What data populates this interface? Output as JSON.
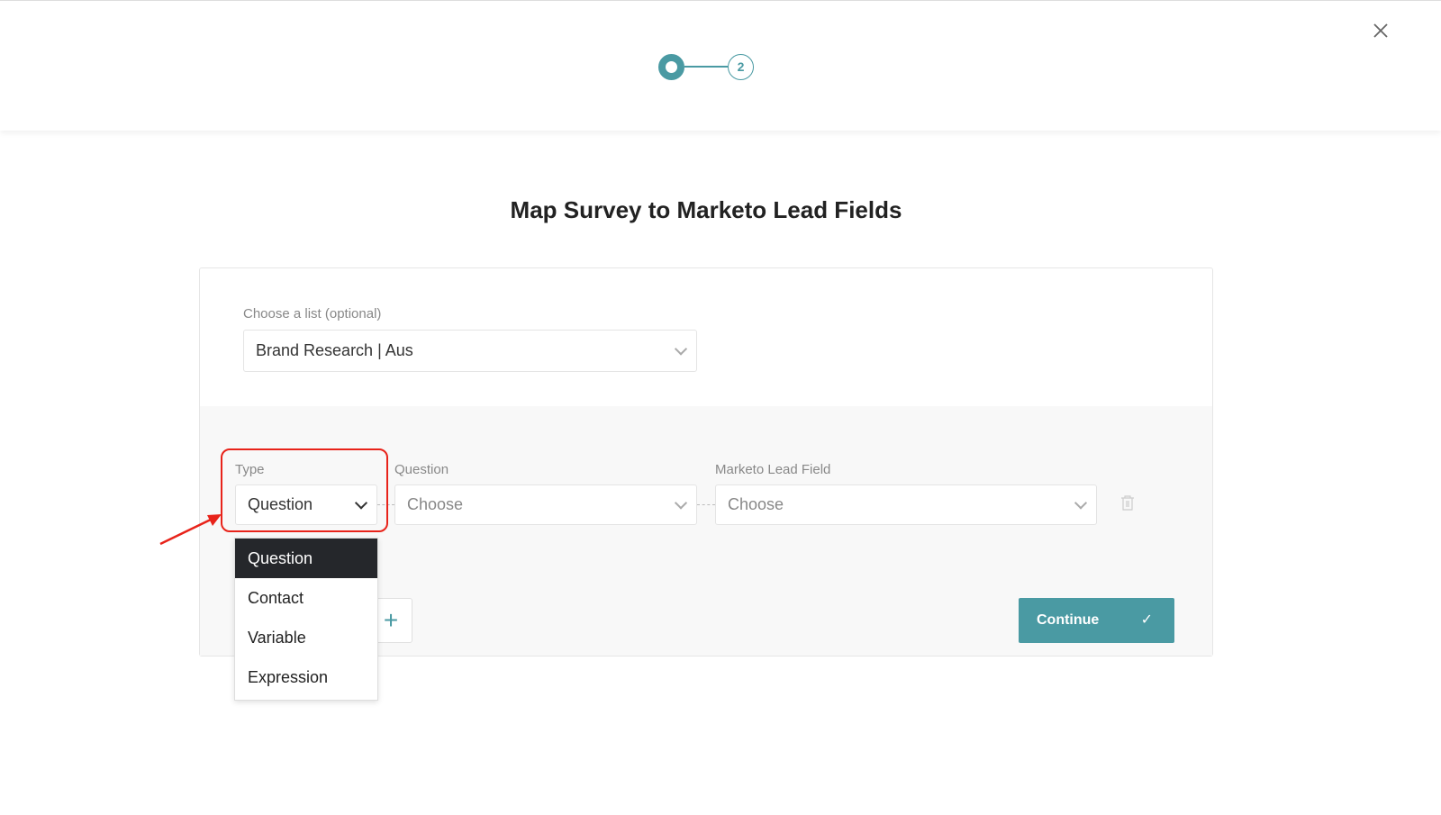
{
  "stepper": {
    "steps": [
      {
        "label": "",
        "state": "current"
      },
      {
        "label": "2",
        "state": "upcoming"
      }
    ],
    "accent": "#4a9aa3"
  },
  "title": "Map Survey to Marketo Lead Fields",
  "list": {
    "label": "Choose a list (optional)",
    "value": "Brand Research | Aus"
  },
  "mapping": {
    "type": {
      "label": "Type",
      "value": "Question",
      "options": [
        "Question",
        "Contact",
        "Variable",
        "Expression"
      ]
    },
    "question": {
      "label": "Question",
      "placeholder": "Choose"
    },
    "lead_field": {
      "label": "Marketo Lead Field",
      "placeholder": "Choose"
    }
  },
  "add_label": "+",
  "continue_label": "Continue",
  "continue_icon": "✓",
  "annotation_color": "#e8231a"
}
